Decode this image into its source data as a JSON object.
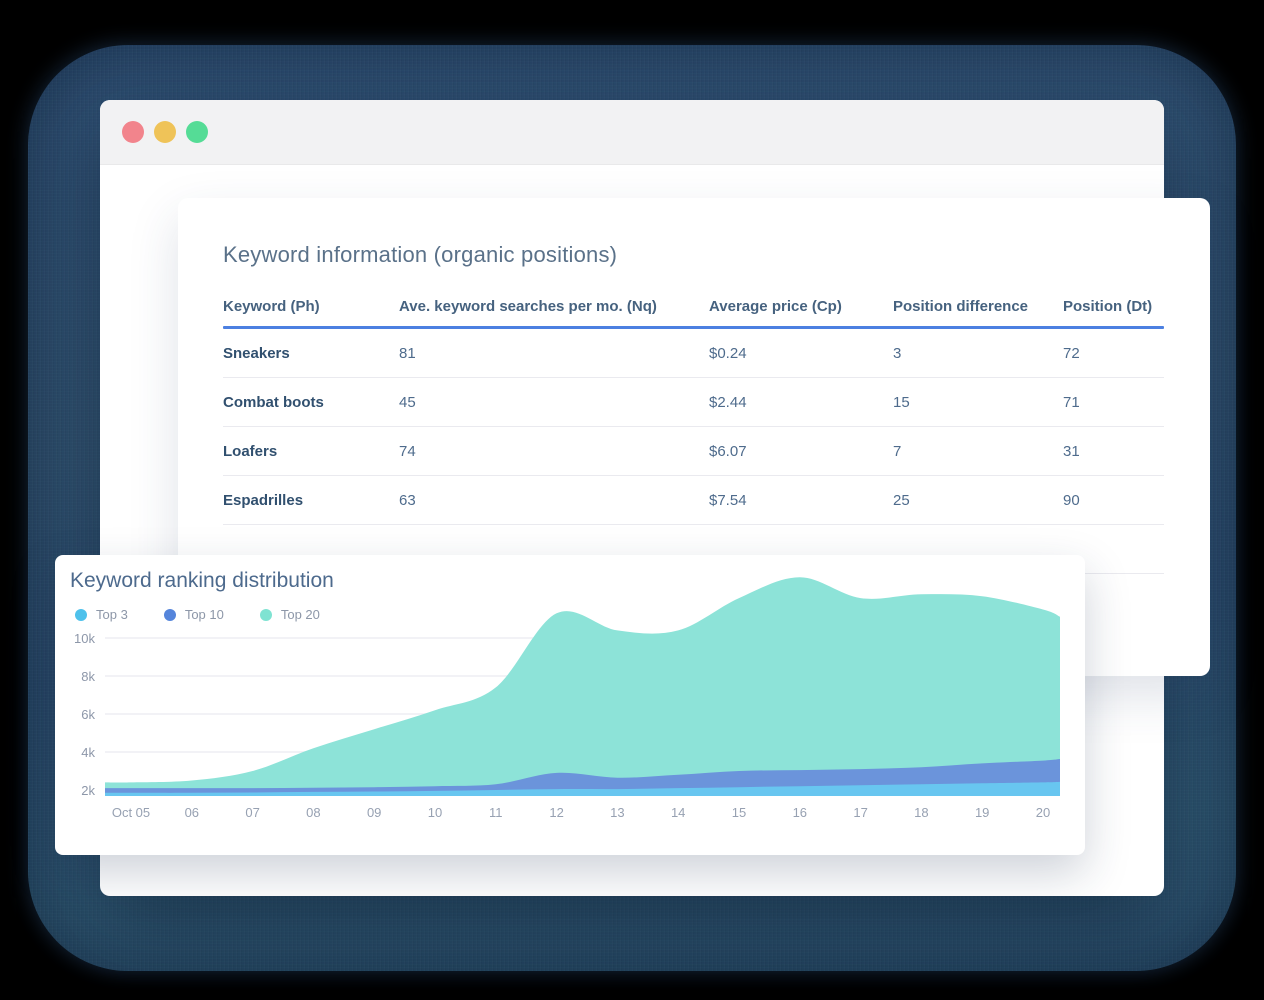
{
  "window": {
    "traffic_lights": {
      "close_color": "#F2848C",
      "minimize_color": "#EFC358",
      "zoom_color": "#55DC96"
    }
  },
  "table_card": {
    "title": "Keyword information (organic positions)",
    "accent_color": "#4C80E1",
    "columns": [
      "Keyword (Ph)",
      "Ave. keyword searches per mo. (Nq)",
      "Average price (Cp)",
      "Position difference",
      "Position (Dt)"
    ],
    "rows": [
      [
        "Sneakers",
        "81",
        "$0.24",
        "3",
        "72"
      ],
      [
        "Combat boots",
        "45",
        "$2.44",
        "15",
        "71"
      ],
      [
        "Loafers",
        "74",
        "$6.07",
        "7",
        "31"
      ],
      [
        "Espadrilles",
        "63",
        "$7.54",
        "25",
        "90"
      ],
      [
        "",
        "",
        "",
        "",
        ""
      ]
    ]
  },
  "chart_card": {
    "title": "Keyword ranking distribution"
  },
  "chart_data": {
    "type": "area",
    "stacked": true,
    "title": "Keyword ranking distribution",
    "x": [
      "Oct 05",
      "06",
      "07",
      "08",
      "09",
      "10",
      "11",
      "12",
      "13",
      "14",
      "15",
      "16",
      "17",
      "18",
      "19",
      "20"
    ],
    "series": [
      {
        "name": "Top 3",
        "fill_color": "#68C6F0",
        "legend_color": "#4EC1EB",
        "values": [
          1850,
          1850,
          1870,
          1900,
          1920,
          1950,
          2000,
          2050,
          2050,
          2100,
          2150,
          2200,
          2250,
          2300,
          2350,
          2400
        ]
      },
      {
        "name": "Top 10",
        "fill_color": "#6B94DB",
        "legend_color": "#5585DB",
        "values": [
          250,
          250,
          230,
          220,
          230,
          250,
          300,
          850,
          600,
          700,
          850,
          850,
          850,
          900,
          1050,
          1150
        ]
      },
      {
        "name": "Top 20",
        "fill_color": "#8DE3D8",
        "legend_color": "#7FE3D2",
        "values": [
          300,
          400,
          900,
          2080,
          3050,
          4000,
          5100,
          8400,
          7750,
          7600,
          9100,
          10150,
          9000,
          9100,
          8800,
          7950
        ]
      }
    ],
    "y_ticks": [
      {
        "label": "2k",
        "value": 2000
      },
      {
        "label": "4k",
        "value": 4000
      },
      {
        "label": "6k",
        "value": 6000
      },
      {
        "label": "8k",
        "value": 8000
      },
      {
        "label": "10k",
        "value": 10000
      }
    ],
    "ylim": [
      0,
      10000
    ],
    "grid": true,
    "legend_position": "top-left",
    "axis_text_color": "#97A1B2",
    "grid_color": "#EEEEF3"
  }
}
